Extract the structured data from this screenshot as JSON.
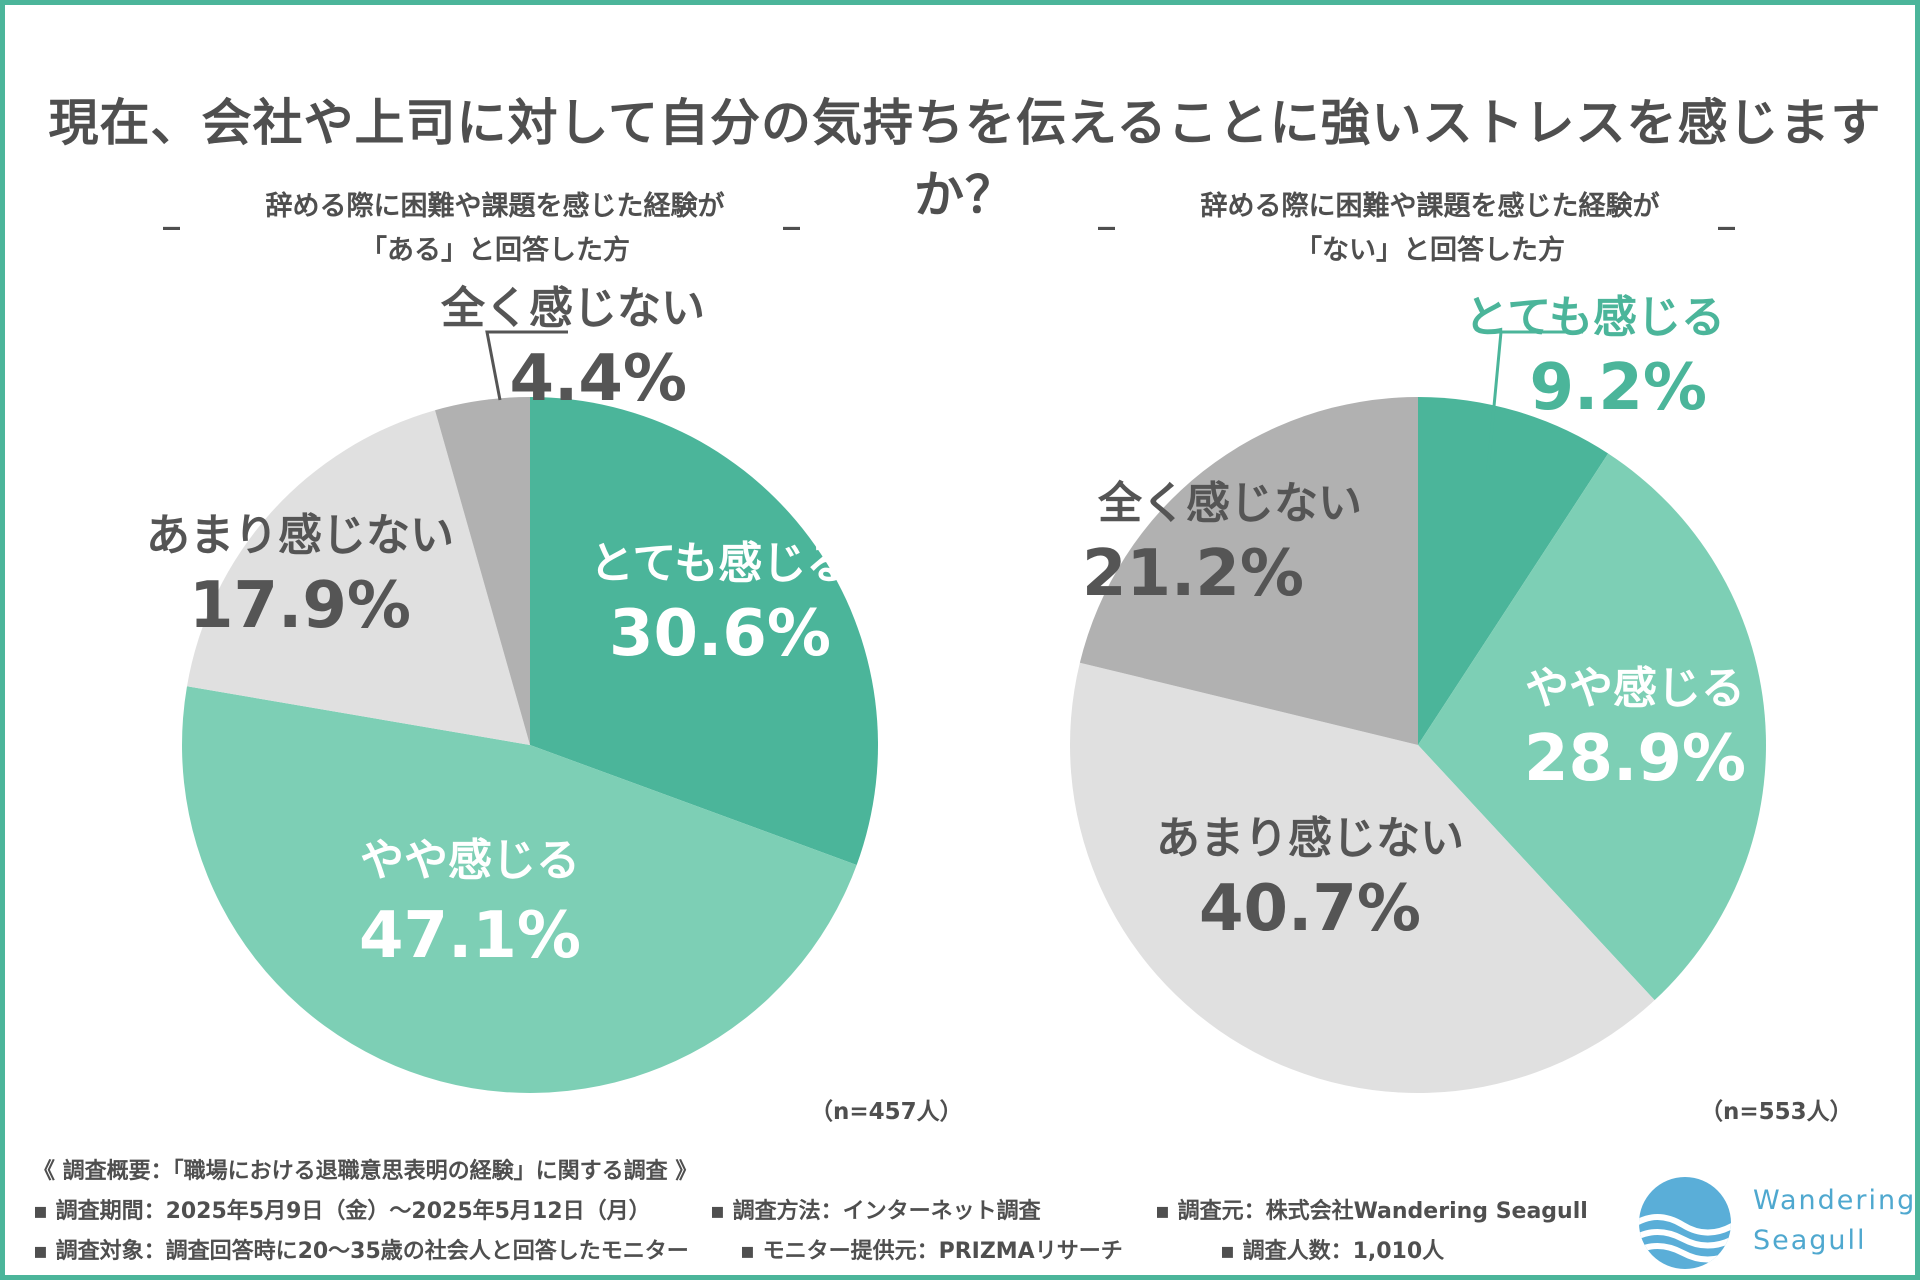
{
  "title": "現在、会社や上司に対して自分の気持ちを伝えることに強いストレスを感じますか？",
  "colors": {
    "border": "#4bb59a",
    "very": "#4bb59a",
    "somewhat": "#7dcfb5",
    "not_much": "#e0e0e0",
    "not_at_all": "#b1b1b1",
    "text_gray": "#555555",
    "text_green": "#4bb59a",
    "logo": "#5aaed8"
  },
  "chart_data": [
    {
      "type": "pie",
      "title_line1": "辞める際に困難や課題を感じた経験が",
      "title_line2": "「ある」と回答した方",
      "sample": "（n=457人）",
      "categories": [
        "とても感じる",
        "やや感じる",
        "あまり感じない",
        "全く感じない"
      ],
      "values": [
        30.6,
        47.1,
        17.9,
        4.4
      ],
      "value_labels": [
        "30.6%",
        "47.1%",
        "17.9%",
        "4.4%"
      ]
    },
    {
      "type": "pie",
      "title_line1": "辞める際に困難や課題を感じた経験が",
      "title_line2": "「ない」と回答した方",
      "sample": "（n=553人）",
      "categories": [
        "とても感じる",
        "やや感じる",
        "あまり感じない",
        "全く感じない"
      ],
      "values": [
        9.2,
        28.9,
        40.7,
        21.2
      ],
      "value_labels": [
        "9.2%",
        "28.9%",
        "40.7%",
        "21.2%"
      ]
    }
  ],
  "notes": {
    "heading": "《 調査概要：「職場における退職意思表明の経験」に関する調査 》",
    "period": "▪ 調査期間：2025年5月9日（金）～2025年5月12日（月）",
    "method": "▪ 調査方法：インターネット調査",
    "source": "▪ 調査元：株式会社Wandering Seagull",
    "target": "▪ 調査対象：調査回答時に20～35歳の社会人と回答したモニター",
    "provider": "▪ モニター提供元：PRIZMAリサーチ",
    "count": "▪ 調査人数：1,010人"
  },
  "logo": {
    "line1": "Wandering",
    "line2": "Seagull"
  }
}
